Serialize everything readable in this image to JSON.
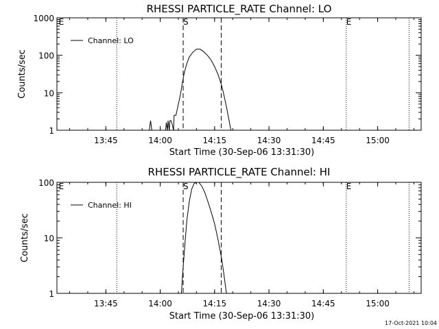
{
  "footer": {
    "timestamp": "17-Oct-2021 10:04"
  },
  "chart_data": [
    {
      "type": "line",
      "title": "RHESSI PARTICLE_RATE Channel: LO",
      "xlabel": "Start Time (30-Sep-06 13:31:30)",
      "ylabel": "Counts/sec",
      "yscale": "log",
      "xlim": [
        "13:31:30",
        "15:12:00"
      ],
      "ylim": [
        1,
        1000
      ],
      "x_ticks": [
        "13:45",
        "14:00",
        "14:15",
        "14:30",
        "14:45",
        "15:00"
      ],
      "y_ticks": [
        "1",
        "10",
        "100",
        "1000"
      ],
      "legend": {
        "position": "top-left",
        "entries": [
          "Channel: LO"
        ]
      },
      "dotted_lines": [
        "13:48:00",
        "14:51:20",
        "15:08:40"
      ],
      "dashed_lines": [
        "14:06:20",
        "14:16:50"
      ],
      "markers": [
        {
          "label": "E",
          "x": "13:32:00"
        },
        {
          "label": "S",
          "x": "14:06:20"
        },
        {
          "label": "E",
          "x": "14:51:20"
        }
      ],
      "series": [
        {
          "name": "Channel: LO",
          "points": [
            [
              "13:57:00",
              1
            ],
            [
              "13:57:20",
              1.8
            ],
            [
              "13:57:40",
              1
            ],
            [
              "14:01:30",
              1
            ],
            [
              "14:01:40",
              1.6
            ],
            [
              "14:02:00",
              1
            ],
            [
              "14:02:10",
              1.8
            ],
            [
              "14:02:30",
              1
            ],
            [
              "14:02:40",
              1.8
            ],
            [
              "14:03:00",
              1.8
            ],
            [
              "14:03:20",
              1.4
            ],
            [
              "14:03:40",
              1
            ],
            [
              "14:03:50",
              2.5
            ],
            [
              "14:04:20",
              2.5
            ],
            [
              "14:04:40",
              3.5
            ],
            [
              "14:05:00",
              5
            ],
            [
              "14:05:20",
              7
            ],
            [
              "14:05:40",
              10
            ],
            [
              "14:06:10",
              20
            ],
            [
              "14:06:40",
              35
            ],
            [
              "14:07:20",
              60
            ],
            [
              "14:08:00",
              90
            ],
            [
              "14:09:00",
              120
            ],
            [
              "14:10:00",
              145
            ],
            [
              "14:11:00",
              145
            ],
            [
              "14:12:00",
              125
            ],
            [
              "14:13:00",
              100
            ],
            [
              "14:14:00",
              75
            ],
            [
              "14:15:00",
              50
            ],
            [
              "14:16:00",
              30
            ],
            [
              "14:17:00",
              15
            ],
            [
              "14:17:40",
              8
            ],
            [
              "14:18:20",
              4
            ],
            [
              "14:19:00",
              1.8
            ],
            [
              "14:19:30",
              1
            ]
          ]
        }
      ]
    },
    {
      "type": "line",
      "title": "RHESSI PARTICLE_RATE Channel: HI",
      "xlabel": "Start Time (30-Sep-06 13:31:30)",
      "ylabel": "Counts/sec",
      "yscale": "log",
      "xlim": [
        "13:31:30",
        "15:12:00"
      ],
      "ylim": [
        1,
        100
      ],
      "x_ticks": [
        "13:45",
        "14:00",
        "14:15",
        "14:30",
        "14:45",
        "15:00"
      ],
      "y_ticks": [
        "1",
        "10",
        "100"
      ],
      "legend": {
        "position": "top-left",
        "entries": [
          "Channel: HI"
        ]
      },
      "dotted_lines": [
        "13:48:00",
        "14:51:20",
        "15:08:40"
      ],
      "dashed_lines": [
        "14:06:20",
        "14:16:50"
      ],
      "markers": [
        {
          "label": "E",
          "x": "13:32:00"
        },
        {
          "label": "S",
          "x": "14:06:20"
        },
        {
          "label": "E",
          "x": "14:51:20"
        }
      ],
      "series": [
        {
          "name": "Channel: HI",
          "points": [
            [
              "14:05:50",
              1
            ],
            [
              "14:06:20",
              3
            ],
            [
              "14:06:50",
              8
            ],
            [
              "14:07:20",
              20
            ],
            [
              "14:08:00",
              45
            ],
            [
              "14:08:40",
              75
            ],
            [
              "14:09:20",
              95
            ],
            [
              "14:10:00",
              100
            ],
            [
              "14:10:40",
              100
            ],
            [
              "14:11:30",
              85
            ],
            [
              "14:12:20",
              65
            ],
            [
              "14:13:10",
              45
            ],
            [
              "14:14:00",
              30
            ],
            [
              "14:15:00",
              18
            ],
            [
              "14:16:00",
              9
            ],
            [
              "14:17:00",
              4
            ],
            [
              "14:17:40",
              2
            ],
            [
              "14:18:10",
              1.1
            ],
            [
              "14:18:20",
              1
            ]
          ]
        }
      ]
    }
  ]
}
